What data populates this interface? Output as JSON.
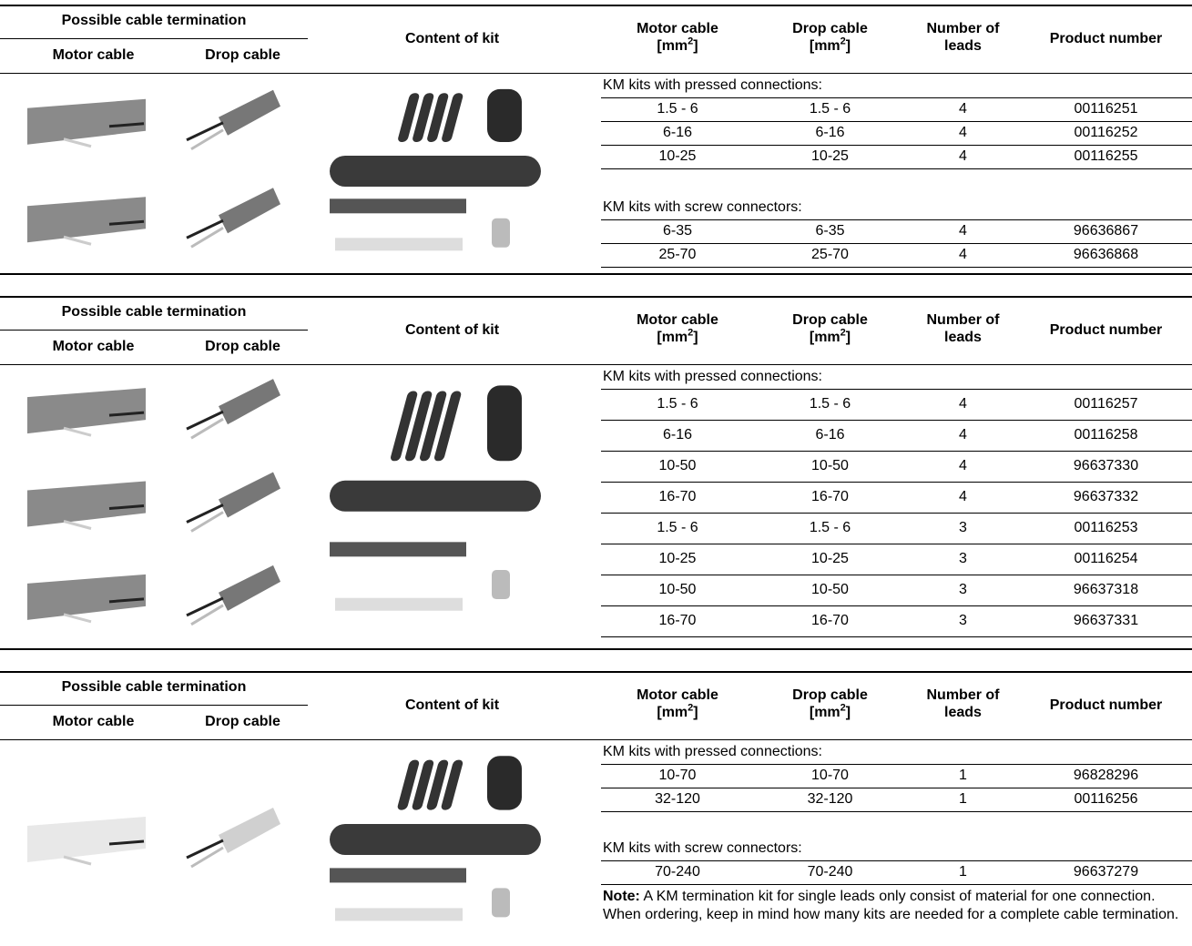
{
  "header": {
    "termination": "Possible cable termination",
    "motor": "Motor cable",
    "drop": "Drop cable",
    "content": "Content of kit",
    "motor_cable": "Motor cable",
    "drop_cable": "Drop cable",
    "unit_open": "[mm",
    "unit_power": "2",
    "unit_close": "]",
    "leads": "Number of leads",
    "product": "Product number"
  },
  "tables": [
    {
      "groups": [
        {
          "title": "KM kits with pressed connections:",
          "rows": [
            [
              "1.5 - 6",
              "1.5 - 6",
              "4",
              "00116251"
            ],
            [
              "6-16",
              "6-16",
              "4",
              "00116252"
            ],
            [
              "10-25",
              "10-25",
              "4",
              "00116255"
            ]
          ]
        },
        {
          "title": "KM kits with screw connectors:",
          "rows": [
            [
              "6-35",
              "6-35",
              "4",
              "96636867"
            ],
            [
              "25-70",
              "25-70",
              "4",
              "96636868"
            ]
          ]
        }
      ]
    },
    {
      "groups": [
        {
          "title": "KM kits with pressed connections:",
          "rows": [
            [
              "1.5 - 6",
              "1.5 - 6",
              "4",
              "00116257"
            ],
            [
              "6-16",
              "6-16",
              "4",
              "00116258"
            ],
            [
              "10-50",
              "10-50",
              "4",
              "96637330"
            ],
            [
              "16-70",
              "16-70",
              "4",
              "96637332"
            ],
            [
              "1.5 - 6",
              "1.5 - 6",
              "3",
              "00116253"
            ],
            [
              "10-25",
              "10-25",
              "3",
              "00116254"
            ],
            [
              "10-50",
              "10-50",
              "3",
              "96637318"
            ],
            [
              "16-70",
              "16-70",
              "3",
              "96637331"
            ]
          ]
        }
      ]
    },
    {
      "groups": [
        {
          "title": "KM kits with pressed connections:",
          "rows": [
            [
              "10-70",
              "10-70",
              "1",
              "96828296"
            ],
            [
              "32-120",
              "32-120",
              "1",
              "00116256"
            ]
          ]
        },
        {
          "title": "KM kits with screw connectors:",
          "rows": [
            [
              "70-240",
              "70-240",
              "1",
              "96637279"
            ]
          ]
        }
      ]
    }
  ],
  "note": {
    "label": "Note:",
    "text": "A KM termination kit for single leads only consist of material for one connection. When ordering, keep in mind how many kits are needed for a complete cable termination."
  }
}
